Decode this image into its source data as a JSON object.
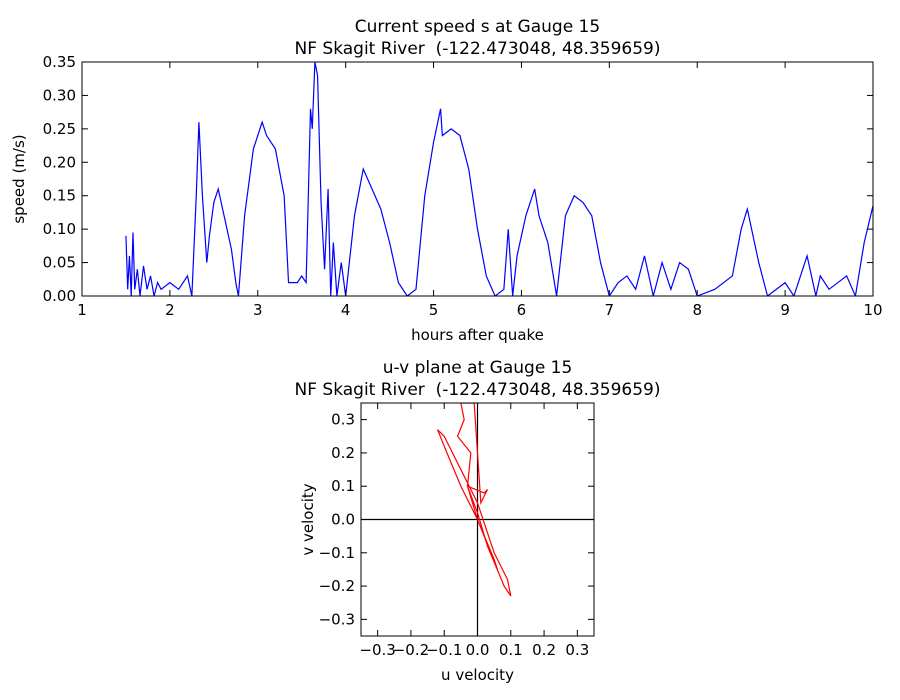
{
  "chart_data": [
    {
      "type": "line",
      "title": "Current speed s at Gauge 15",
      "subtitle": "NF Skagit River  (-122.473048, 48.359659)",
      "x_label": "hours after quake",
      "y_label": "speed (m/s)",
      "color": "#0000ff",
      "x": [
        1.5,
        1.52,
        1.54,
        1.56,
        1.58,
        1.6,
        1.63,
        1.66,
        1.7,
        1.74,
        1.78,
        1.82,
        1.86,
        1.9,
        2.0,
        2.1,
        2.2,
        2.25,
        2.3,
        2.33,
        2.37,
        2.42,
        2.45,
        2.5,
        2.55,
        2.6,
        2.7,
        2.75,
        2.78,
        2.85,
        2.95,
        3.05,
        3.1,
        3.2,
        3.3,
        3.35,
        3.45,
        3.5,
        3.55,
        3.6,
        3.62,
        3.65,
        3.68,
        3.72,
        3.76,
        3.8,
        3.83,
        3.86,
        3.9,
        3.95,
        4.0,
        4.1,
        4.2,
        4.3,
        4.4,
        4.5,
        4.6,
        4.7,
        4.8,
        4.9,
        5.0,
        5.08,
        5.1,
        5.2,
        5.3,
        5.4,
        5.5,
        5.6,
        5.7,
        5.8,
        5.85,
        5.9,
        5.95,
        6.05,
        6.15,
        6.2,
        6.3,
        6.4,
        6.5,
        6.6,
        6.7,
        6.8,
        6.9,
        7.0,
        7.1,
        7.2,
        7.3,
        7.4,
        7.5,
        7.6,
        7.7,
        7.8,
        7.9,
        8.0,
        8.2,
        8.4,
        8.5,
        8.57,
        8.7,
        8.8,
        9.0,
        9.1,
        9.25,
        9.35,
        9.4,
        9.5,
        9.7,
        9.8,
        9.9,
        10.0
      ],
      "values": [
        0.09,
        0.01,
        0.06,
        0.0,
        0.095,
        0.01,
        0.04,
        0.0,
        0.045,
        0.01,
        0.03,
        0.0,
        0.02,
        0.01,
        0.02,
        0.01,
        0.03,
        0.0,
        0.15,
        0.26,
        0.15,
        0.05,
        0.09,
        0.14,
        0.16,
        0.13,
        0.07,
        0.02,
        0.0,
        0.12,
        0.22,
        0.26,
        0.24,
        0.22,
        0.15,
        0.02,
        0.02,
        0.03,
        0.02,
        0.28,
        0.25,
        0.35,
        0.33,
        0.14,
        0.04,
        0.16,
        0.0,
        0.08,
        0.0,
        0.05,
        0.0,
        0.12,
        0.19,
        0.16,
        0.13,
        0.08,
        0.02,
        0.0,
        0.01,
        0.15,
        0.23,
        0.28,
        0.24,
        0.25,
        0.24,
        0.19,
        0.1,
        0.03,
        0.0,
        0.01,
        0.1,
        0.0,
        0.06,
        0.12,
        0.16,
        0.12,
        0.08,
        0.0,
        0.12,
        0.15,
        0.14,
        0.12,
        0.05,
        0.0,
        0.02,
        0.03,
        0.01,
        0.06,
        0.0,
        0.05,
        0.01,
        0.05,
        0.04,
        0.0,
        0.01,
        0.03,
        0.1,
        0.13,
        0.05,
        0.0,
        0.02,
        0.0,
        0.06,
        0.0,
        0.03,
        0.01,
        0.03,
        0.0,
        0.08,
        0.135
      ],
      "xlim": [
        1,
        10
      ],
      "xticks": [
        1,
        2,
        3,
        4,
        5,
        6,
        7,
        8,
        9,
        10
      ],
      "ylim": [
        0,
        0.35
      ],
      "yticks": [
        {
          "value": 0,
          "label": "0.00"
        },
        {
          "value": 0.05,
          "label": "0.05"
        },
        {
          "value": 0.1,
          "label": "0.10"
        },
        {
          "value": 0.15,
          "label": "0.15"
        },
        {
          "value": 0.2,
          "label": "0.20"
        },
        {
          "value": 0.25,
          "label": "0.25"
        },
        {
          "value": 0.3,
          "label": "0.30"
        },
        {
          "value": 0.35,
          "label": "0.35"
        }
      ]
    },
    {
      "type": "line",
      "title": "u-v plane at Gauge 15",
      "subtitle": "NF Skagit River  (-122.473048, 48.359659)",
      "x_label": "u velocity",
      "y_label": "v velocity",
      "color": "#ff0000",
      "x": [
        0,
        -0.05,
        -0.1,
        -0.12,
        -0.1,
        -0.05,
        0,
        0.05,
        0.09,
        0.1,
        0.08,
        0.03,
        0,
        -0.03,
        0.02,
        0.03,
        0.01,
        -0.01,
        -0.05,
        -0.04,
        -0.06,
        -0.02,
        -0.03,
        0,
        0.06,
        0.05,
        0
      ],
      "values": [
        0,
        0.1,
        0.22,
        0.27,
        0.25,
        0.15,
        0.05,
        -0.1,
        -0.18,
        -0.23,
        -0.2,
        -0.08,
        0.02,
        0.1,
        0.08,
        0.09,
        0.05,
        0.35,
        0.35,
        0.3,
        0.25,
        0.2,
        0.1,
        0,
        -0.15,
        -0.12,
        0
      ],
      "xlim": [
        -0.35,
        0.35
      ],
      "xticks": [
        {
          "value": -0.3,
          "label": "−0.3"
        },
        {
          "value": -0.2,
          "label": "−0.2"
        },
        {
          "value": -0.1,
          "label": "−0.1"
        },
        {
          "value": 0,
          "label": "0.0"
        },
        0.1,
        0.2,
        0.3
      ],
      "ylim": [
        -0.35,
        0.35
      ],
      "yticks": [
        {
          "value": -0.3,
          "label": "−0.3"
        },
        {
          "value": -0.2,
          "label": "−0.2"
        },
        {
          "value": -0.1,
          "label": "−0.1"
        },
        {
          "value": 0,
          "label": "0.0"
        },
        0.1,
        0.2,
        0.3
      ],
      "zero_lines": true
    }
  ]
}
